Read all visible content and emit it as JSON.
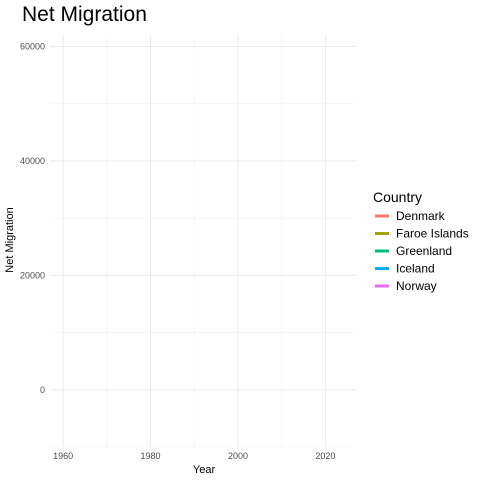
{
  "chart_data": {
    "type": "line",
    "title": "Net Migration",
    "xlabel": "Year",
    "ylabel": "Net Migration",
    "xlim": [
      1957,
      2027
    ],
    "ylim": [
      -10000,
      62000
    ],
    "x_ticks": [
      1960,
      1980,
      2000,
      2020
    ],
    "x_minor_ticks": [
      1970,
      1990,
      2010
    ],
    "y_ticks": [
      0,
      20000,
      40000,
      60000
    ],
    "y_minor_ticks": [
      -10000,
      10000,
      30000,
      50000
    ],
    "grid": true,
    "legend": {
      "title": "Country",
      "placement": "right"
    },
    "series": [
      {
        "name": "Denmark",
        "color": "#F8766D",
        "values": []
      },
      {
        "name": "Faroe Islands",
        "color": "#A3A500",
        "values": []
      },
      {
        "name": "Greenland",
        "color": "#00BF7D",
        "values": []
      },
      {
        "name": "Iceland",
        "color": "#00B0F6",
        "values": []
      },
      {
        "name": "Norway",
        "color": "#E76BF3",
        "values": []
      }
    ]
  }
}
